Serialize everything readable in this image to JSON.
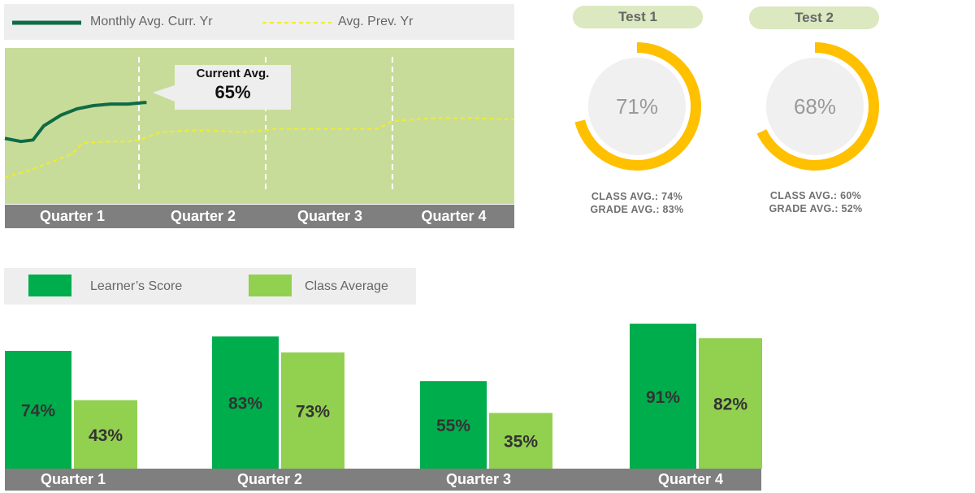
{
  "line_legend": {
    "current": "Monthly Avg. Curr. Yr",
    "previous": "Avg. Prev. Yr"
  },
  "callout": {
    "label": "Current Avg.",
    "value": "65%"
  },
  "colors": {
    "dark_green": "#0f6b45",
    "yellow": "#f2ec2a",
    "plot_bg": "#c8dc9a",
    "gray_axis": "#7f7f7f",
    "learner": "#00ad4c",
    "class_avg": "#92d050",
    "gauge": "#ffc000",
    "gauge_track": "#f0f0f0",
    "pill": "#dbe8c0"
  },
  "tests": [
    {
      "name": "Test 1",
      "value": "71%",
      "fraction": 0.71,
      "class_avg": "CLASS AVG.: 74%",
      "grade_avg": "GRADE AVG.: 83%"
    },
    {
      "name": "Test 2",
      "value": "68%",
      "fraction": 0.68,
      "class_avg": "CLASS AVG.: 60%",
      "grade_avg": "GRADE AVG.: 52%"
    }
  ],
  "bar_legend": {
    "learner": "Learner’s Score",
    "class": "Class Average"
  },
  "chart_data": [
    {
      "type": "line",
      "categories": [
        "Quarter 1",
        "Quarter 2",
        "Quarter 3",
        "Quarter 4"
      ],
      "x_range": [
        0,
        4
      ],
      "y_range": [
        0,
        100
      ],
      "series": [
        {
          "name": "Monthly Avg. Curr. Yr",
          "style": "solid",
          "x": [
            0,
            0.12,
            0.21,
            0.29,
            0.42,
            0.54,
            0.66,
            0.79,
            0.92,
            1.04,
            1.06
          ],
          "y": [
            42,
            40,
            41,
            50,
            57,
            61,
            63,
            64,
            64,
            65,
            65
          ]
        },
        {
          "name": "Avg. Prev. Yr",
          "style": "dashed",
          "x": [
            0,
            0.17,
            0.38,
            0.5,
            0.58,
            0.79,
            0.92,
            1.0,
            1.17,
            1.38,
            1.58,
            1.83,
            2.08,
            2.33,
            2.58,
            2.88,
            3.0,
            3.33,
            3.67,
            4.0
          ],
          "y": [
            17,
            21,
            28,
            32,
            39,
            40,
            40,
            41,
            46,
            47,
            47,
            46,
            48,
            48,
            48,
            48,
            53,
            55,
            55,
            54
          ]
        }
      ]
    },
    {
      "type": "bar",
      "categories": [
        "Quarter 1",
        "Quarter 2",
        "Quarter 3",
        "Quarter 4"
      ],
      "ylim": [
        0,
        100
      ],
      "series": [
        {
          "name": "Learner’s Score",
          "values": [
            74,
            83,
            55,
            91
          ],
          "labels": [
            "74%",
            "83%",
            "55%",
            "91%"
          ]
        },
        {
          "name": "Class Average",
          "values": [
            43,
            73,
            35,
            82
          ],
          "labels": [
            "43%",
            "73%",
            "35%",
            "82%"
          ]
        }
      ]
    }
  ]
}
